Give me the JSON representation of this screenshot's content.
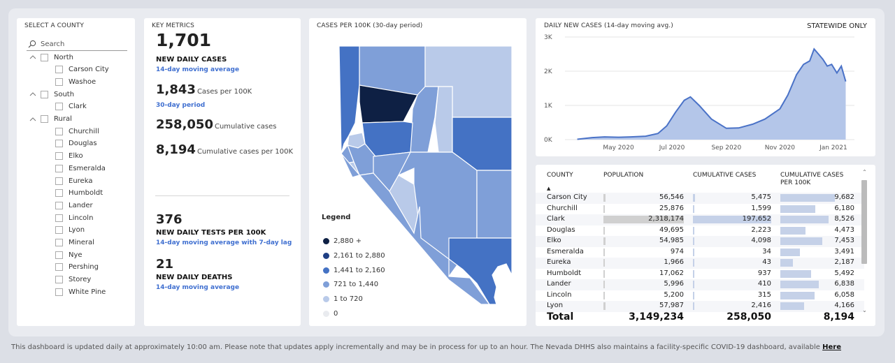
{
  "county_panel": {
    "title": "SELECT A COUNTY",
    "search_placeholder": "Search",
    "groups": [
      {
        "name": "North",
        "counties": [
          "Carson City",
          "Washoe"
        ]
      },
      {
        "name": "South",
        "counties": [
          "Clark"
        ]
      },
      {
        "name": "Rural",
        "counties": [
          "Churchill",
          "Douglas",
          "Elko",
          "Esmeralda",
          "Eureka",
          "Humboldt",
          "Lander",
          "Lincoln",
          "Lyon",
          "Mineral",
          "Nye",
          "Pershing",
          "Storey",
          "White Pine"
        ]
      }
    ]
  },
  "metrics": {
    "title": "KEY METRICS",
    "new_daily_cases": "1,701",
    "new_daily_cases_label": "NEW DAILY CASES",
    "new_daily_cases_sub": "14-day moving average",
    "cases_per_100k": "1,843",
    "cases_per_100k_label": "Cases per 100K",
    "cases_per_100k_sub": "30-day period",
    "cumulative_cases": "258,050",
    "cumulative_cases_label": "Cumulative cases",
    "cumulative_per_100k": "8,194",
    "cumulative_per_100k_label": "Cumulative cases per 100K",
    "daily_tests": "376",
    "daily_tests_label": "NEW DAILY TESTS PER 100K",
    "daily_tests_sub": "14-day moving average with 7-day lag",
    "daily_deaths": "21",
    "daily_deaths_label": "NEW DAILY DEATHS",
    "daily_deaths_sub": "14-day moving average"
  },
  "map": {
    "title": "CASES PER 100K (30-day period)",
    "legend_title": "Legend",
    "legend": [
      {
        "label": "2,880 +",
        "color": "#0e2044"
      },
      {
        "label": "2,161 to 2,880",
        "color": "#1f3f84"
      },
      {
        "label": "1,441 to 2,160",
        "color": "#4472c4"
      },
      {
        "label": "721 to 1,440",
        "color": "#7f9fd8"
      },
      {
        "label": "1 to 720",
        "color": "#b9cae9"
      },
      {
        "label": "0",
        "color": "#e9ebef"
      }
    ]
  },
  "chart_data": {
    "type": "area",
    "title": "DAILY NEW CASES (14-day moving avg.)",
    "badge": "STATEWIDE ONLY",
    "x": [
      "2020-03-15",
      "2020-04-01",
      "2020-04-15",
      "2020-05-01",
      "2020-05-15",
      "2020-06-01",
      "2020-06-15",
      "2020-06-25",
      "2020-07-05",
      "2020-07-15",
      "2020-07-22",
      "2020-08-01",
      "2020-08-15",
      "2020-09-01",
      "2020-09-15",
      "2020-10-01",
      "2020-10-15",
      "2020-11-01",
      "2020-11-10",
      "2020-11-20",
      "2020-11-28",
      "2020-12-05",
      "2020-12-10",
      "2020-12-15",
      "2020-12-20",
      "2020-12-25",
      "2020-12-30",
      "2021-01-05",
      "2021-01-10",
      "2021-01-15"
    ],
    "y": [
      10,
      60,
      80,
      70,
      80,
      100,
      180,
      400,
      800,
      1150,
      1250,
      1000,
      600,
      330,
      340,
      450,
      600,
      900,
      1300,
      1900,
      2200,
      2300,
      2650,
      2500,
      2350,
      2150,
      2200,
      1950,
      2150,
      1700
    ],
    "ylim": [
      0,
      3000
    ],
    "yticks": [
      "0K",
      "1K",
      "2K",
      "3K"
    ],
    "xticks": [
      "May 2020",
      "Jul 2020",
      "Sep 2020",
      "Nov 2020",
      "Jan 2021"
    ],
    "series_color": "#4a72c7",
    "fill_color": "#b4c6e9"
  },
  "table": {
    "headers": [
      "COUNTY",
      "POPULATION",
      "CUMULATIVE CASES",
      "CUMULATIVE CASES PER 100K"
    ],
    "rows": [
      {
        "county": "Carson City",
        "population": "56,546",
        "cases": "5,475",
        "per100k": "9,682",
        "pop_v": 56546,
        "cases_v": 5475,
        "rate_v": 9682
      },
      {
        "county": "Churchill",
        "population": "25,876",
        "cases": "1,599",
        "per100k": "6,180",
        "pop_v": 25876,
        "cases_v": 1599,
        "rate_v": 6180
      },
      {
        "county": "Clark",
        "population": "2,318,174",
        "cases": "197,652",
        "per100k": "8,526",
        "pop_v": 2318174,
        "cases_v": 197652,
        "rate_v": 8526
      },
      {
        "county": "Douglas",
        "population": "49,695",
        "cases": "2,223",
        "per100k": "4,473",
        "pop_v": 49695,
        "cases_v": 2223,
        "rate_v": 4473
      },
      {
        "county": "Elko",
        "population": "54,985",
        "cases": "4,098",
        "per100k": "7,453",
        "pop_v": 54985,
        "cases_v": 4098,
        "rate_v": 7453
      },
      {
        "county": "Esmeralda",
        "population": "974",
        "cases": "34",
        "per100k": "3,491",
        "pop_v": 974,
        "cases_v": 34,
        "rate_v": 3491
      },
      {
        "county": "Eureka",
        "population": "1,966",
        "cases": "43",
        "per100k": "2,187",
        "pop_v": 1966,
        "cases_v": 43,
        "rate_v": 2187
      },
      {
        "county": "Humboldt",
        "population": "17,062",
        "cases": "937",
        "per100k": "5,492",
        "pop_v": 17062,
        "cases_v": 937,
        "rate_v": 5492
      },
      {
        "county": "Lander",
        "population": "5,996",
        "cases": "410",
        "per100k": "6,838",
        "pop_v": 5996,
        "cases_v": 410,
        "rate_v": 6838
      },
      {
        "county": "Lincoln",
        "population": "5,200",
        "cases": "315",
        "per100k": "6,058",
        "pop_v": 5200,
        "cases_v": 315,
        "rate_v": 6058
      },
      {
        "county": "Lyon",
        "population": "57,987",
        "cases": "2,416",
        "per100k": "4,166",
        "pop_v": 57987,
        "cases_v": 2416,
        "rate_v": 4166
      }
    ],
    "total_label": "Total",
    "total_population": "3,149,234",
    "total_cases": "258,050",
    "total_per100k": "8,194"
  },
  "footer": {
    "text": "This dashboard is updated daily at approximately 10:00 am. Please note that updates apply incrementally and may be in process for up to an hour.  The Nevada DHHS also maintains a facility-specific COVID-19 dashboard, available ",
    "link": "Here"
  }
}
